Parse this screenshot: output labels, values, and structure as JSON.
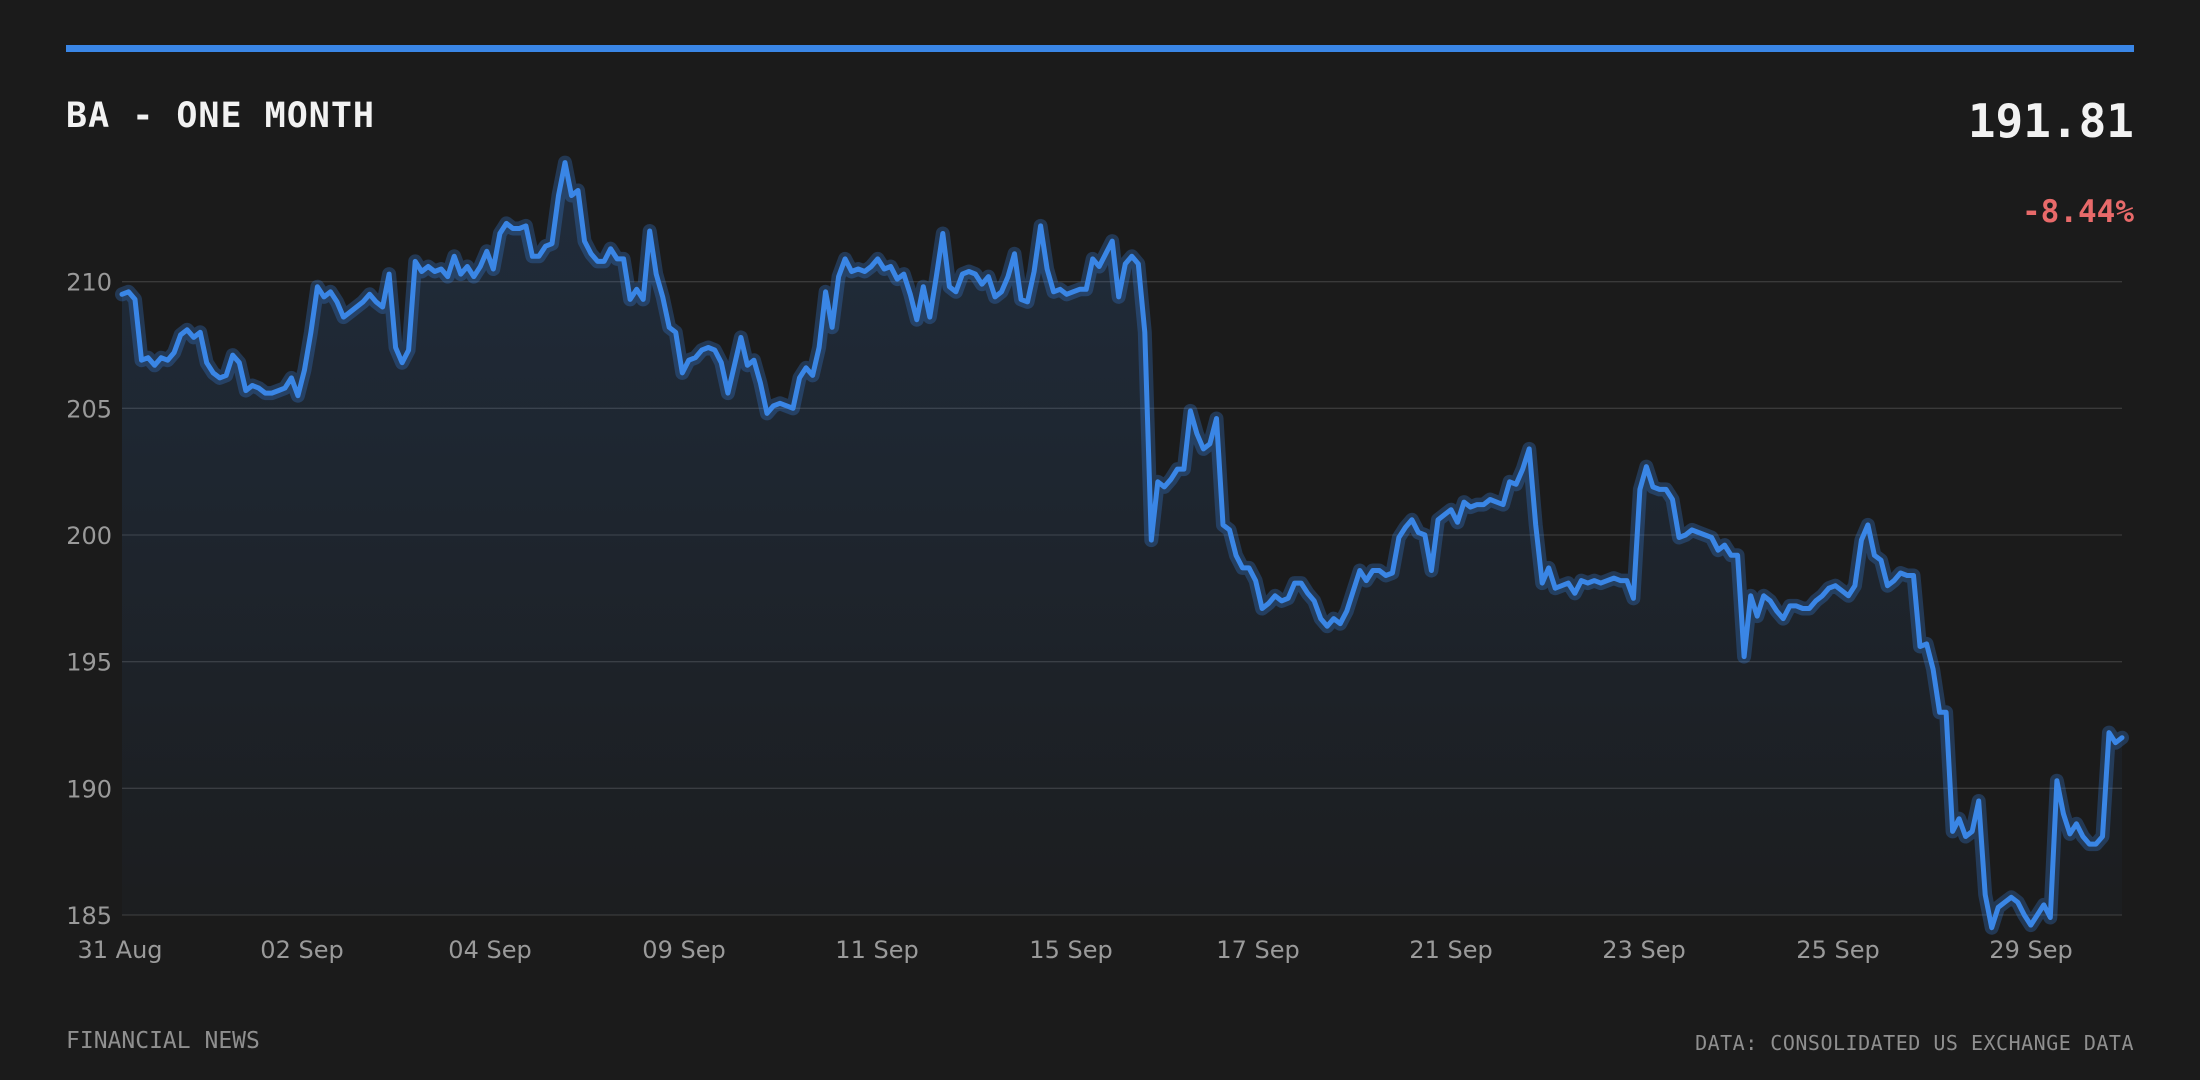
{
  "header": {
    "title": "BA - ONE MONTH",
    "price": "191.81",
    "change": "-8.44%"
  },
  "footer": {
    "source_left": "FINANCIAL NEWS",
    "source_right": "DATA: CONSOLIDATED US EXCHANGE DATA"
  },
  "colors": {
    "accent": "#3a86e6",
    "negative": "#e86a6a",
    "background": "#1b1b1b",
    "grid": "#3a3a3a"
  },
  "chart_data": {
    "type": "area",
    "title": "BA - ONE MONTH",
    "ylim": [
      185,
      215
    ],
    "yticks": [
      185,
      190,
      195,
      200,
      205,
      210
    ],
    "xtick_labels": [
      "31 Aug",
      "02 Sep",
      "04 Sep",
      "09 Sep",
      "11 Sep",
      "15 Sep",
      "17 Sep",
      "21 Sep",
      "23 Sep",
      "25 Sep",
      "29 Sep"
    ],
    "grid": true,
    "legend": "none",
    "series": [
      {
        "values": [
          209.5,
          209.6,
          209.3,
          206.9,
          207.0,
          206.7,
          207.0,
          206.9,
          207.2,
          207.9,
          208.1,
          207.8,
          208.0,
          206.8,
          206.4,
          206.2,
          206.3,
          207.1,
          206.8,
          205.7,
          205.9,
          205.8,
          205.6,
          205.6,
          205.7,
          205.8,
          206.2,
          205.5,
          206.5,
          208.0,
          209.8,
          209.4,
          209.6,
          209.2,
          208.6,
          208.8,
          209.0,
          209.2,
          209.5,
          209.2,
          209.0,
          210.3,
          207.4,
          206.8,
          207.3,
          210.8,
          210.4,
          210.6,
          210.4,
          210.5,
          210.2,
          211.0,
          210.3,
          210.6,
          210.2,
          210.6,
          211.2,
          210.5,
          211.9,
          212.3,
          212.1,
          212.1,
          212.2,
          211.0,
          211.0,
          211.4,
          211.5,
          213.4,
          214.7,
          213.4,
          213.6,
          211.6,
          211.1,
          210.8,
          210.8,
          211.3,
          210.9,
          210.9,
          209.3,
          209.7,
          209.3,
          212.0,
          210.3,
          209.4,
          208.2,
          208.0,
          206.4,
          206.9,
          207.0,
          207.3,
          207.4,
          207.3,
          206.8,
          205.6,
          206.7,
          207.8,
          206.7,
          206.9,
          206.0,
          204.8,
          205.1,
          205.2,
          205.1,
          205.0,
          206.2,
          206.6,
          206.3,
          207.4,
          209.6,
          208.2,
          210.2,
          210.9,
          210.4,
          210.5,
          210.4,
          210.6,
          210.9,
          210.5,
          210.6,
          210.1,
          210.3,
          209.5,
          208.5,
          209.8,
          208.6,
          210.2,
          211.9,
          209.8,
          209.6,
          210.3,
          210.4,
          210.3,
          209.9,
          210.2,
          209.4,
          209.6,
          210.2,
          211.1,
          209.3,
          209.2,
          210.4,
          212.2,
          210.5,
          209.6,
          209.7,
          209.5,
          209.6,
          209.7,
          209.7,
          210.9,
          210.6,
          211.1,
          211.6,
          209.4,
          210.7,
          211.0,
          210.7,
          208.0,
          199.8,
          202.1,
          201.9,
          202.2,
          202.6,
          202.6,
          204.9,
          204.0,
          203.4,
          203.6,
          204.6,
          200.4,
          200.2,
          199.2,
          198.7,
          198.7,
          198.2,
          197.1,
          197.3,
          197.6,
          197.4,
          197.5,
          198.1,
          198.1,
          197.7,
          197.4,
          196.7,
          196.4,
          196.7,
          196.5,
          197.0,
          197.8,
          198.6,
          198.2,
          198.6,
          198.6,
          198.4,
          198.5,
          199.9,
          200.3,
          200.6,
          200.1,
          200.0,
          198.6,
          200.6,
          200.8,
          201.0,
          200.5,
          201.3,
          201.1,
          201.2,
          201.2,
          201.4,
          201.3,
          201.2,
          202.1,
          202.0,
          202.6,
          203.4,
          200.4,
          198.1,
          198.7,
          197.9,
          198.0,
          198.1,
          197.7,
          198.2,
          198.1,
          198.2,
          198.1,
          198.2,
          198.3,
          198.2,
          198.2,
          197.5,
          201.8,
          202.7,
          201.9,
          201.8,
          201.8,
          201.4,
          199.9,
          200.0,
          200.2,
          200.1,
          200.0,
          199.9,
          199.4,
          199.6,
          199.2,
          199.2,
          195.2,
          197.6,
          196.8,
          197.6,
          197.4,
          197.0,
          196.7,
          197.2,
          197.2,
          197.1,
          197.1,
          197.4,
          197.6,
          197.9,
          198.0,
          197.8,
          197.6,
          198.0,
          199.8,
          200.4,
          199.2,
          199.0,
          198.0,
          198.2,
          198.5,
          198.4,
          198.4,
          195.6,
          195.7,
          194.7,
          193.0,
          193.0,
          188.3,
          188.8,
          188.1,
          188.3,
          189.5,
          185.8,
          184.5,
          185.3,
          185.5,
          185.7,
          185.5,
          185.0,
          184.6,
          185.0,
          185.4,
          184.9,
          190.3,
          189.0,
          188.2,
          188.6,
          188.1,
          187.8,
          187.8,
          188.1,
          192.2,
          191.8,
          192.0
        ]
      }
    ]
  }
}
